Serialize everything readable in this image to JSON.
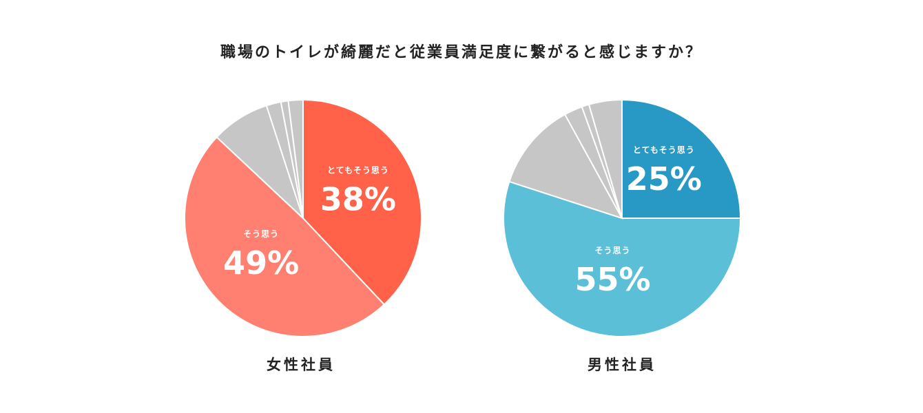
{
  "title": "職場のトイレが綺麗だと従業員満足度に繋がると感じますか？",
  "colors": {
    "gray": "#c6c6c6",
    "female_very": "#ff6149",
    "female_agree": "#ff8070",
    "male_very": "#2899c4",
    "male_agree": "#5bbfd7"
  },
  "chart_data": [
    {
      "type": "pie",
      "title": "女性社員",
      "slices": [
        {
          "label": "とてもそう思う",
          "value": 38,
          "display": "38%",
          "color": "#ff6149"
        },
        {
          "label": "そう思う",
          "value": 49,
          "display": "49%",
          "color": "#ff8070"
        },
        {
          "label": "",
          "value": 8,
          "color": "#c6c6c6"
        },
        {
          "label": "",
          "value": 2,
          "color": "#c6c6c6"
        },
        {
          "label": "",
          "value": 1,
          "color": "#c6c6c6"
        },
        {
          "label": "",
          "value": 2,
          "color": "#c6c6c6"
        }
      ]
    },
    {
      "type": "pie",
      "title": "男性社員",
      "slices": [
        {
          "label": "とてもそう思う",
          "value": 25,
          "display": "25%",
          "color": "#2899c4"
        },
        {
          "label": "そう思う",
          "value": 55,
          "display": "55%",
          "color": "#5bbfd7"
        },
        {
          "label": "",
          "value": 12,
          "color": "#c6c6c6"
        },
        {
          "label": "",
          "value": 2.5,
          "color": "#c6c6c6"
        },
        {
          "label": "",
          "value": 1,
          "color": "#c6c6c6"
        },
        {
          "label": "",
          "value": 4.5,
          "color": "#c6c6c6"
        }
      ]
    }
  ]
}
